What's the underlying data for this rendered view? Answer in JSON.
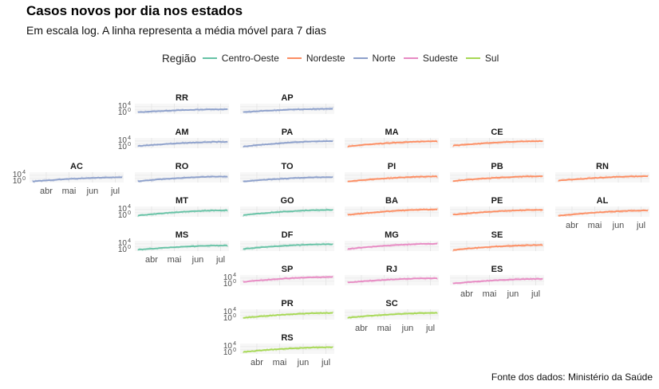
{
  "title": "Casos novos por dia nos estados",
  "subtitle": "Em escala log. A linha representa a média móvel para 7 dias",
  "legend": {
    "title": "Região",
    "items": [
      {
        "label": "Centro-Oeste",
        "color": "#66c2a5"
      },
      {
        "label": "Nordeste",
        "color": "#fc8d62"
      },
      {
        "label": "Norte",
        "color": "#8da0cb"
      },
      {
        "label": "Sudeste",
        "color": "#e78ac3"
      },
      {
        "label": "Sul",
        "color": "#a6d854"
      }
    ]
  },
  "caption": "Fonte dos dados: Ministério da Saúde",
  "chart_data": {
    "type": "line",
    "y_scale": "log10",
    "y_ticks": [
      {
        "base": "10",
        "exp": "4"
      },
      {
        "base": "10",
        "exp": "0"
      }
    ],
    "x_ticks": [
      "abr",
      "mai",
      "jun",
      "jul"
    ],
    "x_tick_months": [
      4,
      5,
      6,
      7
    ],
    "x_range": [
      "2020-03-10",
      "2020-07-12"
    ],
    "ylim_log10": [
      0,
      4.8
    ],
    "grid": true,
    "legend_position": "top",
    "series": [
      {
        "state": "RR",
        "region": "Norte",
        "start_log10": 0.8,
        "end_log10": 2.2
      },
      {
        "state": "AP",
        "region": "Norte",
        "start_log10": 0.9,
        "end_log10": 2.4
      },
      {
        "state": "AM",
        "region": "Norte",
        "start_log10": 1.0,
        "end_log10": 3.0
      },
      {
        "state": "PA",
        "region": "Norte",
        "start_log10": 0.8,
        "end_log10": 3.3
      },
      {
        "state": "MA",
        "region": "Nordeste",
        "start_log10": 0.9,
        "end_log10": 3.2
      },
      {
        "state": "CE",
        "region": "Nordeste",
        "start_log10": 1.2,
        "end_log10": 3.3
      },
      {
        "state": "AC",
        "region": "Norte",
        "start_log10": 0.5,
        "end_log10": 2.4
      },
      {
        "state": "RO",
        "region": "Norte",
        "start_log10": 0.6,
        "end_log10": 2.8
      },
      {
        "state": "TO",
        "region": "Norte",
        "start_log10": 0.5,
        "end_log10": 2.5
      },
      {
        "state": "PI",
        "region": "Nordeste",
        "start_log10": 0.5,
        "end_log10": 2.8
      },
      {
        "state": "PB",
        "region": "Nordeste",
        "start_log10": 0.7,
        "end_log10": 2.9
      },
      {
        "state": "RN",
        "region": "Nordeste",
        "start_log10": 0.9,
        "end_log10": 2.9
      },
      {
        "state": "MT",
        "region": "Centro-Oeste",
        "start_log10": 0.6,
        "end_log10": 3.0
      },
      {
        "state": "GO",
        "region": "Centro-Oeste",
        "start_log10": 0.8,
        "end_log10": 3.2
      },
      {
        "state": "BA",
        "region": "Nordeste",
        "start_log10": 0.9,
        "end_log10": 3.4
      },
      {
        "state": "PE",
        "region": "Nordeste",
        "start_log10": 1.0,
        "end_log10": 3.2
      },
      {
        "state": "AL",
        "region": "Nordeste",
        "start_log10": 0.5,
        "end_log10": 2.9
      },
      {
        "state": "MS",
        "region": "Centro-Oeste",
        "start_log10": 0.6,
        "end_log10": 2.6
      },
      {
        "state": "DF",
        "region": "Centro-Oeste",
        "start_log10": 1.0,
        "end_log10": 3.2
      },
      {
        "state": "MG",
        "region": "Sudeste",
        "start_log10": 1.0,
        "end_log10": 3.4
      },
      {
        "state": "SE",
        "region": "Nordeste",
        "start_log10": 0.5,
        "end_log10": 2.8
      },
      {
        "state": "SP",
        "region": "Sudeste",
        "start_log10": 1.6,
        "end_log10": 3.9
      },
      {
        "state": "RJ",
        "region": "Sudeste",
        "start_log10": 1.3,
        "end_log10": 3.3
      },
      {
        "state": "ES",
        "region": "Sudeste",
        "start_log10": 0.9,
        "end_log10": 3.0
      },
      {
        "state": "PR",
        "region": "Sul",
        "start_log10": 0.8,
        "end_log10": 3.1
      },
      {
        "state": "SC",
        "region": "Sul",
        "start_log10": 0.9,
        "end_log10": 3.1
      },
      {
        "state": "RS",
        "region": "Sul",
        "start_log10": 0.9,
        "end_log10": 3.1
      }
    ]
  }
}
